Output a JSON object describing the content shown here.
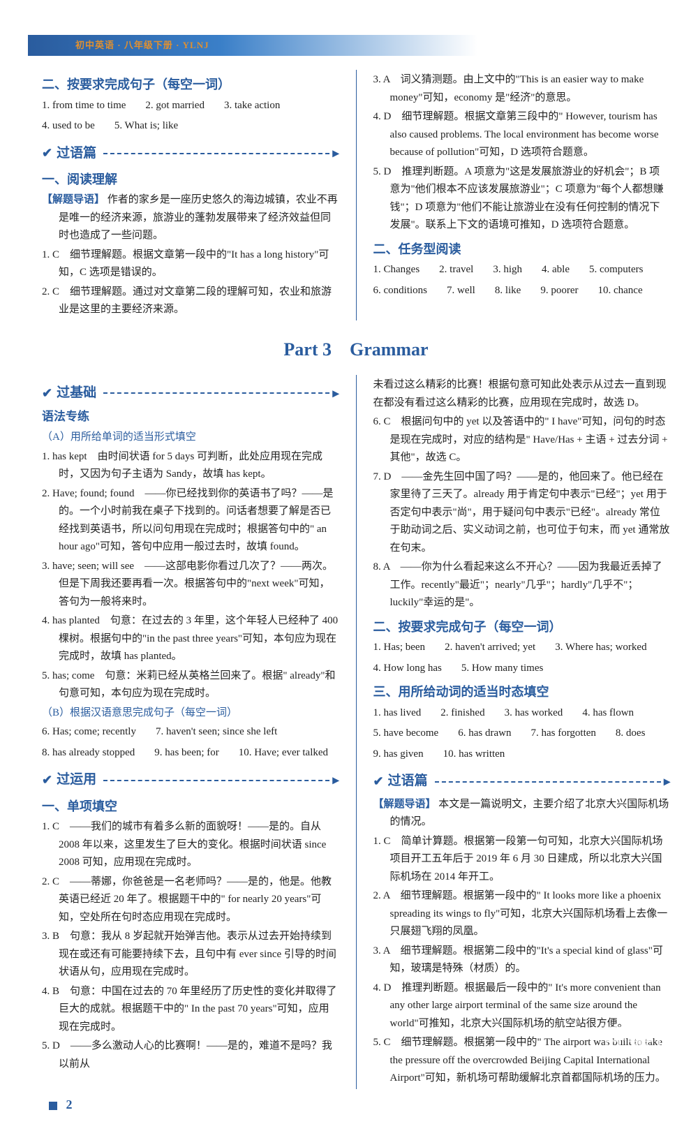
{
  "header": {
    "book": "初中英语 · 八年级下册 · YLNJ"
  },
  "top": {
    "left": {
      "title2": "二、按要求完成句子（每空一词）",
      "ans": [
        "1. from time to time",
        "2. got married",
        "3. take action",
        "4. used to be",
        "5. What is; like"
      ],
      "guoyu_title": "过语篇",
      "yuedu_title": "一、阅读理解",
      "jieti_label": "【解题导语】",
      "jieti": "作者的家乡是一座历史悠久的海边城镇，农业不再是唯一的经济来源，旅游业的蓬勃发展带来了经济效益但同时也造成了一些问题。",
      "items": [
        "1. C　细节理解题。根据文章第一段中的\"It has a long history\"可知，C 选项是错误的。",
        "2. C　细节理解题。通过对文章第二段的理解可知，农业和旅游业是这里的主要经济来源。"
      ]
    },
    "right": {
      "items": [
        "3. A　词义猜测题。由上文中的\"This is an easier way to make money\"可知，economy 是\"经济\"的意思。",
        "4. D　细节理解题。根据文章第三段中的\" However, tourism has also caused problems. The local environment has become worse because of pollution\"可知，D 选项符合题意。",
        "5. D　推理判断题。A 项意为\"这是发展旅游业的好机会\"；B 项意为\"他们根本不应该发展旅游业\"；C 项意为\"每个人都想赚钱\"；D 项意为\"他们不能让旅游业在没有任何控制的情况下发展\"。联系上下文的语境可推知，D 选项符合题意。"
      ],
      "renwu_title": "二、任务型阅读",
      "renwu_ans": [
        "1. Changes",
        "2. travel",
        "3. high",
        "4. able",
        "5. computers",
        "6. conditions",
        "7. well",
        "8. like",
        "9. poorer",
        "10. chance"
      ]
    }
  },
  "part3_title": "Part 3　Grammar",
  "bottom": {
    "left": {
      "guojichu_title": "过基础",
      "yufa_title": "语法专练",
      "subA": "（A）用所给单词的适当形式填空",
      "A_items": [
        "1. has kept　由时间状语 for 5 days 可判断，此处应用现在完成时，又因为句子主语为 Sandy，故填 has kept。",
        "2. Have; found; found　——你已经找到你的英语书了吗？——是的。一个小时前我在桌子下找到的。问话者想要了解是否已经找到英语书，所以问句用现在完成时；根据答句中的\" an hour ago\"可知，答句中应用一般过去时，故填 found。",
        "3. have; seen; will see　——这部电影你看过几次了？——两次。但是下周我还要再看一次。根据答句中的\"next week\"可知，答句为一般将来时。",
        "4. has planted　句意：在过去的 3 年里，这个年轻人已经种了 400 棵树。根据句中的\"in the past three years\"可知，本句应为现在完成时，故填 has planted。",
        "5. has; come　句意：米莉已经从英格兰回来了。根据\" already\"和句意可知，本句应为现在完成时。"
      ],
      "subB": "（B）根据汉语意思完成句子（每空一词）",
      "B_items": [
        "6. Has; come; recently",
        "7. haven't seen; since she left",
        "8. has already stopped",
        "9. has been; for",
        "10. Have; ever talked"
      ],
      "guoyunyong_title": "过运用",
      "danxiang_title": "一、单项填空",
      "C_items": [
        "1. C　——我们的城市有着多么新的面貌呀！——是的。自从 2008 年以来，这里发生了巨大的变化。根据时间状语 since 2008 可知，应用现在完成时。",
        "2. C　——蒂娜，你爸爸是一名老师吗？——是的，他是。他教英语已经近 20 年了。根据题干中的\" for nearly 20 years\"可知，空处所在句时态应用现在完成时。",
        "3. B　句意：我从 8 岁起就开始弹吉他。表示从过去开始持续到现在或还有可能要持续下去，且句中有 ever since 引导的时间状语从句，应用现在完成时。",
        "4. B　句意：中国在过去的 70 年里经历了历史性的变化并取得了巨大的成就。根据题干中的\" In the past 70 years\"可知，应用现在完成时。",
        "5. D　——多么激动人心的比赛啊！——是的，难道不是吗？我以前从"
      ]
    },
    "right": {
      "cont": "未看过这么精彩的比赛！根据句意可知此处表示从过去一直到现在都没有看过这么精彩的比赛，应用现在完成时，故选 D。",
      "D_items": [
        "6. C　根据问句中的 yet 以及答语中的\" I have\"可知，问句的时态是现在完成时，对应的结构是\" Have/Has + 主语 + 过去分词 + 其他\"，故选 C。",
        "7. D　——金先生回中国了吗？——是的，他回来了。他已经在家里待了三天了。already 用于肯定句中表示\"已经\"；yet 用于否定句中表示\"尚\"，用于疑问句中表示\"已经\"。already 常位于助动词之后、实义动词之前，也可位于句末，而 yet 通常放在句末。",
        "8. A　——你为什么看起来这么不开心？——因为我最近丢掉了工作。recently\"最近\"；nearly\"几乎\"；hardly\"几乎不\"；luckily\"幸运的是\"。"
      ],
      "anyaoqiu_title": "二、按要求完成句子（每空一词）",
      "anyaoqiu_ans": [
        "1. Has; been",
        "2. haven't arrived; yet",
        "3. Where has; worked",
        "4. How long has",
        "5. How many times"
      ],
      "yongsuo_title": "三、用所给动词的适当时态填空",
      "yongsuo_ans": [
        "1. has lived",
        "2. finished",
        "3. has worked",
        "4. has flown",
        "5. have become",
        "6. has drawn",
        "7. has forgotten",
        "8. does",
        "9. has given",
        "10. has written"
      ],
      "guoyu_title": "过语篇",
      "jieti_label": "【解题导语】",
      "jieti": "本文是一篇说明文，主要介绍了北京大兴国际机场的情况。",
      "E_items": [
        "1. C　简单计算题。根据第一段第一句可知，北京大兴国际机场项目开工五年后于 2019 年 6 月 30 日建成，所以北京大兴国际机场在 2014 年开工。",
        "2. A　细节理解题。根据第一段中的\" It looks more like a phoenix spreading its wings to fly\"可知，北京大兴国际机场看上去像一只展翅飞翔的凤凰。",
        "3. A　细节理解题。根据第二段中的\"It's a special kind of glass\"可知，玻璃是特殊（材质）的。",
        "4. D　推理判断题。根据最后一段中的\" It's more convenient than any other large airport terminal of the same size around the world\"可推知，北京大兴国际机场的航空站很方便。",
        "5. C　细节理解题。根据第一段中的\" The airport was built to take the pressure off the overcrowded Beijing Capital International Airport\"可知，新机场可帮助缓解北京首都国际机场的压力。"
      ]
    }
  },
  "page_number": "2",
  "watermark": "答案圈",
  "watermark_sub": "MXQE.COM"
}
